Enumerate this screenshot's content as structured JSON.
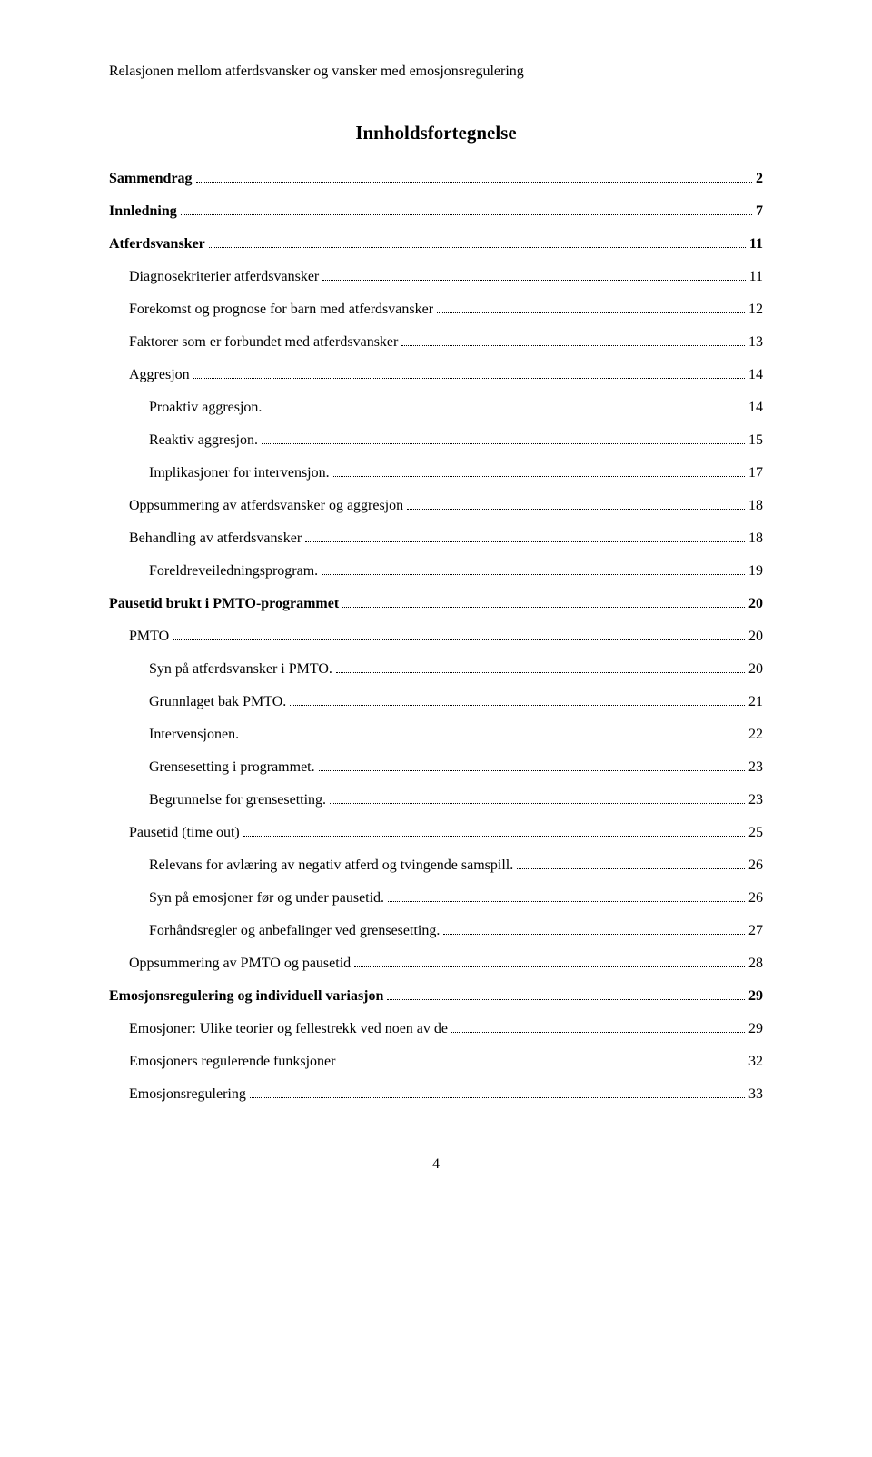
{
  "page": {
    "running_header": "Relasjonen mellom atferdsvansker og vansker med emosjonsregulering",
    "toc_title": "Innholdsfortegnelse",
    "page_number": "4"
  },
  "toc": [
    {
      "label": "Sammendrag",
      "page": "2",
      "level": 1,
      "bold": true
    },
    {
      "label": "Innledning",
      "page": "7",
      "level": 1,
      "bold": true
    },
    {
      "label": "Atferdsvansker",
      "page": "11",
      "level": 1,
      "bold": true
    },
    {
      "label": "Diagnosekriterier atferdsvansker",
      "page": "11",
      "level": 2,
      "bold": false
    },
    {
      "label": "Forekomst og prognose for barn med atferdsvansker",
      "page": "12",
      "level": 2,
      "bold": false
    },
    {
      "label": "Faktorer som er forbundet med atferdsvansker",
      "page": "13",
      "level": 2,
      "bold": false
    },
    {
      "label": "Aggresjon",
      "page": "14",
      "level": 2,
      "bold": false
    },
    {
      "label": "Proaktiv aggresjon.",
      "page": "14",
      "level": 3,
      "bold": false
    },
    {
      "label": "Reaktiv aggresjon.",
      "page": "15",
      "level": 3,
      "bold": false
    },
    {
      "label": "Implikasjoner for intervensjon.",
      "page": "17",
      "level": 3,
      "bold": false
    },
    {
      "label": "Oppsummering av atferdsvansker og aggresjon",
      "page": "18",
      "level": 2,
      "bold": false
    },
    {
      "label": "Behandling av atferdsvansker",
      "page": "18",
      "level": 2,
      "bold": false
    },
    {
      "label": "Foreldreveiledningsprogram.",
      "page": "19",
      "level": 3,
      "bold": false
    },
    {
      "label": "Pausetid brukt i PMTO-programmet",
      "page": "20",
      "level": 1,
      "bold": true
    },
    {
      "label": "PMTO",
      "page": "20",
      "level": 2,
      "bold": false
    },
    {
      "label": "Syn på atferdsvansker i PMTO.",
      "page": "20",
      "level": 3,
      "bold": false
    },
    {
      "label": "Grunnlaget bak PMTO.",
      "page": "21",
      "level": 3,
      "bold": false
    },
    {
      "label": "Intervensjonen.",
      "page": "22",
      "level": 3,
      "bold": false
    },
    {
      "label": "Grensesetting i programmet.",
      "page": "23",
      "level": 3,
      "bold": false
    },
    {
      "label": "Begrunnelse for grensesetting.",
      "page": "23",
      "level": 3,
      "bold": false
    },
    {
      "label": "Pausetid (time out)",
      "page": "25",
      "level": 2,
      "bold": false
    },
    {
      "label": "Relevans for avlæring av negativ atferd og tvingende samspill.",
      "page": "26",
      "level": 3,
      "bold": false
    },
    {
      "label": "Syn på emosjoner før og under pausetid.",
      "page": "26",
      "level": 3,
      "bold": false
    },
    {
      "label": "Forhåndsregler og anbefalinger ved grensesetting.",
      "page": "27",
      "level": 3,
      "bold": false
    },
    {
      "label": "Oppsummering av PMTO og pausetid",
      "page": "28",
      "level": 2,
      "bold": false
    },
    {
      "label": "Emosjonsregulering og individuell variasjon",
      "page": "29",
      "level": 1,
      "bold": true
    },
    {
      "label": "Emosjoner: Ulike teorier og fellestrekk ved noen av de",
      "page": "29",
      "level": 2,
      "bold": false
    },
    {
      "label": "Emosjoners regulerende funksjoner",
      "page": "32",
      "level": 2,
      "bold": false
    },
    {
      "label": "Emosjonsregulering",
      "page": "33",
      "level": 2,
      "bold": false
    }
  ]
}
